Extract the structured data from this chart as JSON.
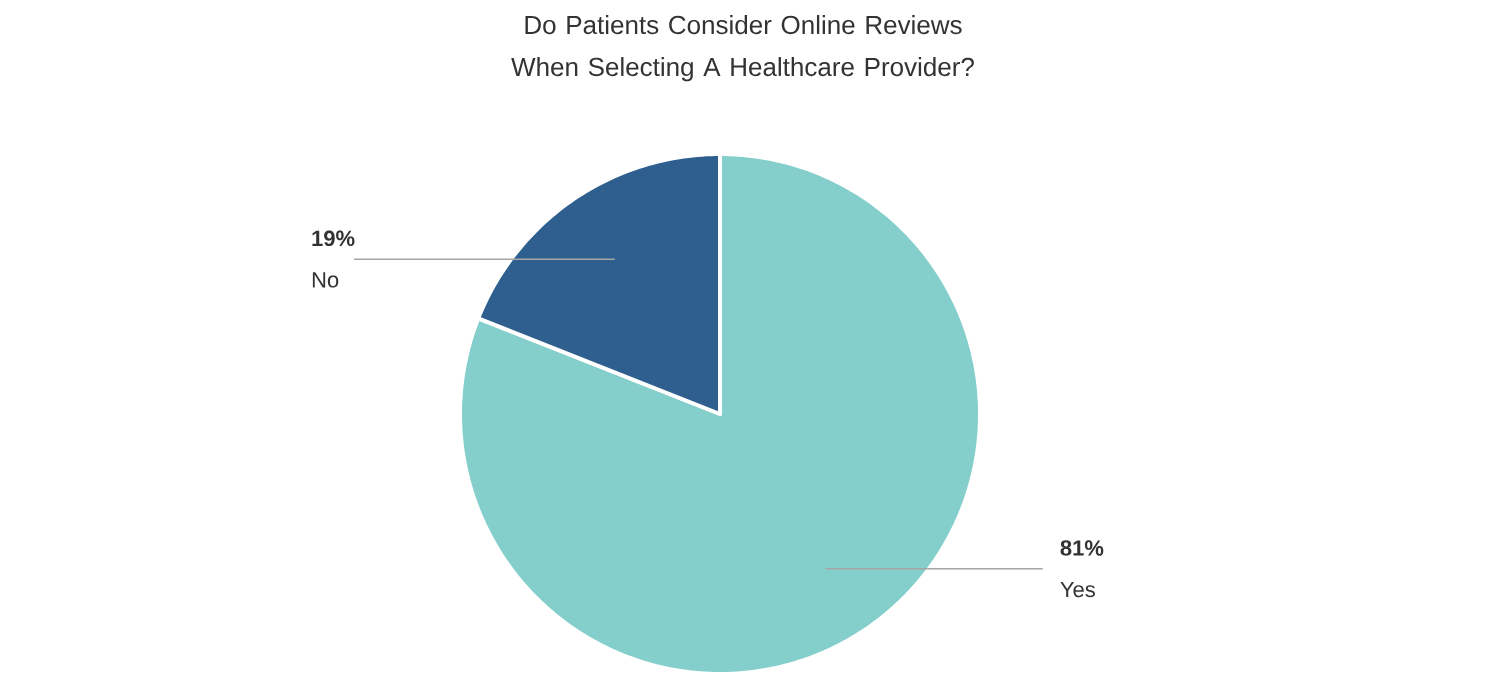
{
  "chart_data": {
    "type": "pie",
    "title": "Do Patients Consider Online Reviews When Selecting A Healthcare Provider?",
    "categories": [
      "Yes",
      "No"
    ],
    "values": [
      81,
      19
    ],
    "value_labels": [
      "81%",
      "19%"
    ],
    "colors": [
      "#84cfcb",
      "#2e5f8e"
    ]
  }
}
